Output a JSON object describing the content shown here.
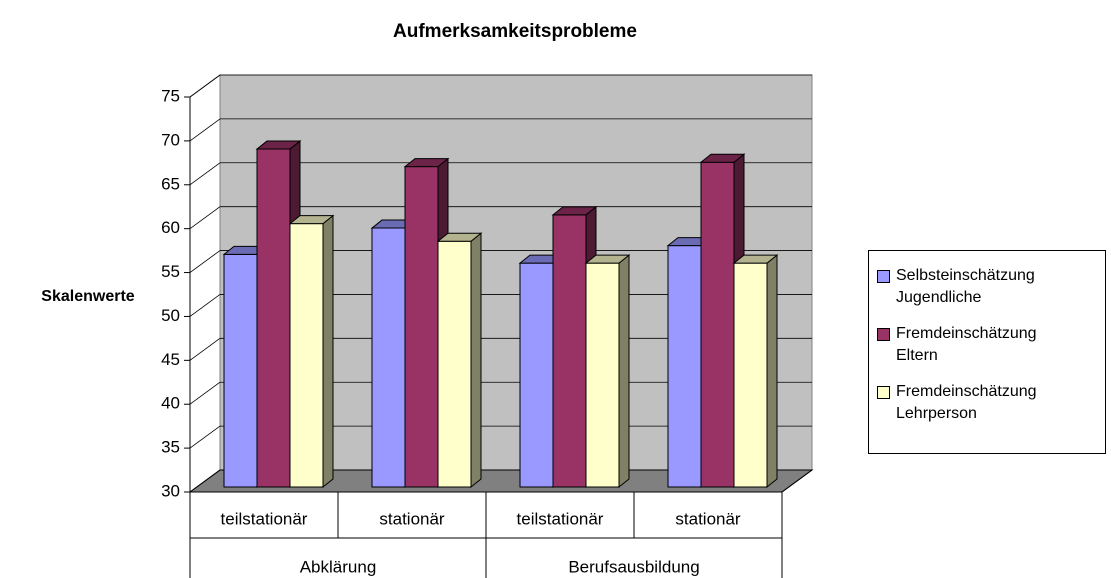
{
  "chart_data": {
    "type": "bar3d",
    "title": "Aufmerksamkeitsprobleme",
    "y_label": "Skalenwerte",
    "categories": [
      "teilstationär",
      "stationär",
      "teilstationär",
      "stationär"
    ],
    "groups": [
      "Abklärung",
      "Berufsausbildung"
    ],
    "series": [
      {
        "name": "Selbsteinschätzung Jugendliche",
        "color": "#9999ff",
        "values": [
          56.5,
          59.5,
          55.5,
          57.5
        ]
      },
      {
        "name": "Fremdeinschätzung Eltern",
        "color": "#993366",
        "values": [
          68.5,
          66.5,
          61,
          67
        ]
      },
      {
        "name": "Fremdeinschätzung Lehrperson",
        "color": "#ffffcc",
        "values": [
          60,
          58,
          55.5,
          55.5
        ]
      }
    ],
    "ylim": [
      30,
      75
    ],
    "yticks": [
      30,
      35,
      40,
      45,
      50,
      55,
      60,
      65,
      70,
      75
    ],
    "grid": true,
    "legend": "right"
  }
}
